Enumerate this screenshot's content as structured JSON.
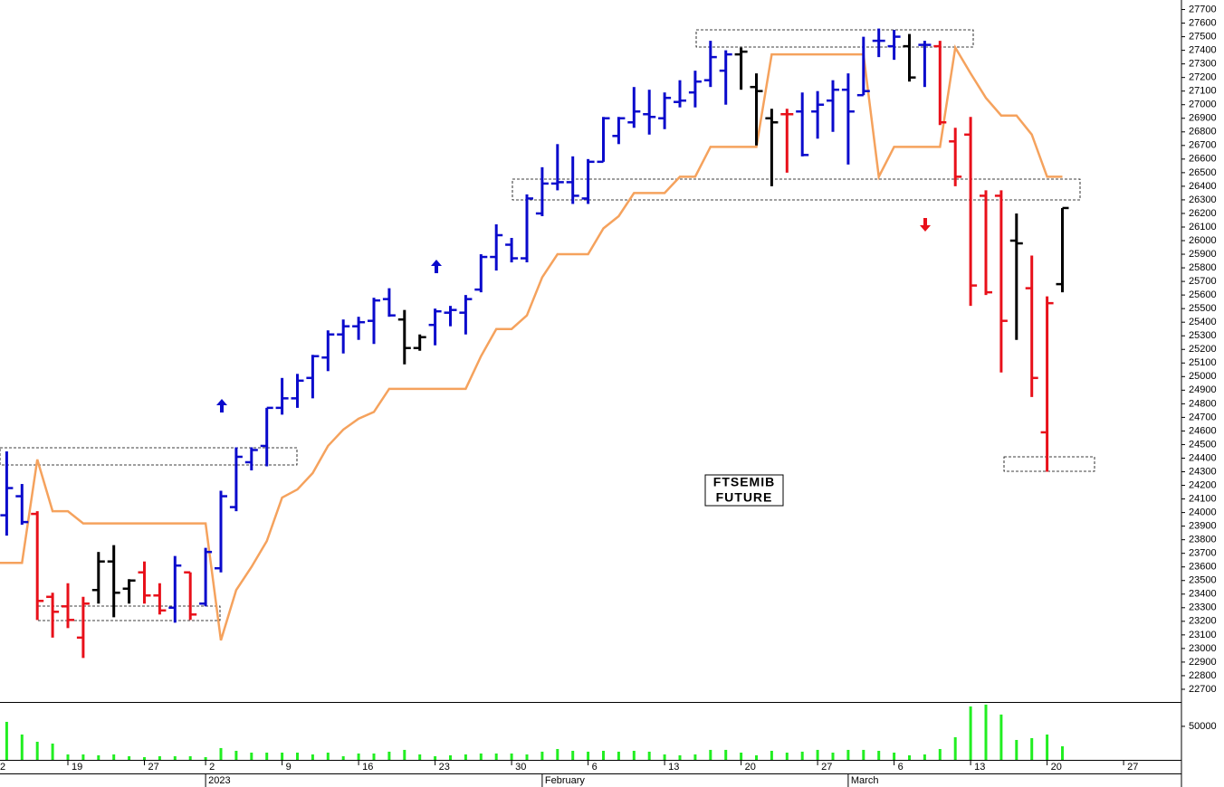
{
  "chart_data": {
    "type": "ohlc",
    "annotation": [
      "FTSEMIB",
      "FUTURE"
    ],
    "categories": [
      "2",
      null,
      null,
      null,
      null,
      "19",
      null,
      null,
      null,
      null,
      "27",
      null,
      null,
      null,
      "2",
      null,
      null,
      null,
      null,
      "9",
      null,
      null,
      null,
      null,
      "16",
      null,
      null,
      null,
      null,
      "23",
      null,
      null,
      null,
      null,
      "30",
      null,
      null,
      null,
      null,
      "6",
      null,
      null,
      null,
      null,
      "13",
      null,
      null,
      null,
      null,
      "20",
      null,
      null,
      null,
      null,
      "27",
      null,
      null,
      null,
      null,
      "6",
      null,
      null,
      null,
      null,
      "13",
      null,
      null,
      null,
      null,
      "20",
      null,
      null,
      null,
      null,
      "27",
      null,
      null,
      null
    ],
    "months": [
      "2023",
      "February",
      "March"
    ],
    "open": [
      null,
      23980,
      24120,
      23990,
      23380,
      23310,
      23080,
      23430,
      23640,
      23440,
      23560,
      23390,
      23300,
      23560,
      23330,
      23590,
      24040,
      24370,
      24490,
      24770,
      24840,
      24990,
      25140,
      25310,
      25370,
      25410,
      25570,
      25420,
      25210,
      25380,
      25470,
      25470,
      25640,
      25880,
      25970,
      25870,
      26200,
      26420,
      26430,
      26310,
      26580,
      26770,
      26870,
      26930,
      26900,
      27020,
      27090,
      27180,
      27250,
      27370,
      27130,
      26900,
      26930,
      26950,
      26950,
      27030,
      27110,
      27070,
      27470,
      27430,
      27430,
      27440,
      27430,
      26730,
      26780,
      26330,
      26330,
      26000,
      25650,
      24590,
      25680,
      null,
      null,
      null,
      null,
      null,
      null,
      null
    ],
    "high": [
      null,
      24450,
      24210,
      24010,
      23410,
      23480,
      23380,
      23710,
      23760,
      23510,
      23640,
      23480,
      23680,
      23560,
      23740,
      24160,
      24480,
      24480,
      24770,
      24990,
      25020,
      25160,
      25340,
      25420,
      25440,
      25580,
      25650,
      25490,
      25310,
      25500,
      25520,
      25600,
      25900,
      26120,
      26020,
      26340,
      26540,
      26710,
      26620,
      26600,
      26910,
      26910,
      27130,
      27110,
      27090,
      27180,
      27250,
      27470,
      27400,
      27420,
      27230,
      26970,
      26970,
      27090,
      27100,
      27180,
      27230,
      27500,
      27560,
      27550,
      27520,
      27470,
      27470,
      26830,
      26910,
      26370,
      26370,
      26200,
      25890,
      25590,
      26240,
      null,
      null,
      null,
      null,
      null,
      null,
      null
    ],
    "low": [
      null,
      23830,
      23910,
      23210,
      23080,
      23150,
      22930,
      23330,
      23230,
      23330,
      23330,
      23250,
      23190,
      23210,
      23310,
      23560,
      24010,
      24310,
      24340,
      24720,
      24770,
      24840,
      25040,
      25170,
      25270,
      25240,
      25440,
      25090,
      25190,
      25230,
      25370,
      25310,
      25620,
      25780,
      25840,
      25840,
      26180,
      26370,
      26270,
      26270,
      26580,
      26710,
      26830,
      26780,
      26820,
      26980,
      26980,
      27130,
      27000,
      27110,
      26700,
      26400,
      26500,
      26620,
      26750,
      26800,
      26560,
      27070,
      27350,
      27330,
      27170,
      27130,
      26850,
      26400,
      25520,
      25600,
      25030,
      25270,
      24850,
      24300,
      25620,
      null,
      null,
      null,
      null,
      null,
      null,
      null
    ],
    "close": [
      null,
      24180,
      23930,
      23350,
      23270,
      23210,
      23330,
      23640,
      23410,
      23500,
      23390,
      23280,
      23610,
      23250,
      23710,
      24120,
      24410,
      24460,
      24770,
      24840,
      24970,
      25150,
      25310,
      25370,
      25400,
      25560,
      25450,
      25210,
      25290,
      25480,
      25490,
      25570,
      25880,
      26040,
      25870,
      26310,
      26420,
      26430,
      26330,
      26580,
      26900,
      26900,
      26950,
      26910,
      27050,
      27030,
      27170,
      27350,
      27370,
      27390,
      27100,
      26870,
      26930,
      26630,
      27000,
      27110,
      26950,
      27100,
      27470,
      27500,
      27200,
      27440,
      26870,
      26470,
      25670,
      25620,
      25410,
      25980,
      24990,
      25540,
      26240,
      null,
      null,
      null,
      null,
      null,
      null,
      null
    ],
    "bar_colors": [
      null,
      "#0a0acc",
      "#0a0acc",
      "#e8101a",
      "#e8101a",
      "#e8101a",
      "#e8101a",
      "#000000",
      "#000000",
      "#000000",
      "#e8101a",
      "#e8101a",
      "#0a0acc",
      "#e8101a",
      "#0a0acc",
      "#0a0acc",
      "#0a0acc",
      "#0a0acc",
      "#0a0acc",
      "#0a0acc",
      "#0a0acc",
      "#0a0acc",
      "#0a0acc",
      "#0a0acc",
      "#0a0acc",
      "#0a0acc",
      "#0a0acc",
      "#000000",
      "#000000",
      "#0a0acc",
      "#0a0acc",
      "#0a0acc",
      "#0a0acc",
      "#0a0acc",
      "#0a0acc",
      "#0a0acc",
      "#0a0acc",
      "#0a0acc",
      "#0a0acc",
      "#0a0acc",
      "#0a0acc",
      "#0a0acc",
      "#0a0acc",
      "#0a0acc",
      "#0a0acc",
      "#0a0acc",
      "#0a0acc",
      "#0a0acc",
      "#0a0acc",
      "#000000",
      "#000000",
      "#000000",
      "#e8101a",
      "#0a0acc",
      "#0a0acc",
      "#0a0acc",
      "#0a0acc",
      "#0a0acc",
      "#0a0acc",
      "#0a0acc",
      "#000000",
      "#0a0acc",
      "#e8101a",
      "#e8101a",
      "#e8101a",
      "#e8101a",
      "#e8101a",
      "#000000",
      "#e8101a",
      "#e8101a",
      "#000000",
      null,
      null,
      null,
      null,
      null,
      null,
      null
    ],
    "line": {
      "color": "#f5a25d",
      "values": [
        23630,
        23630,
        23630,
        24390,
        24010,
        24010,
        23920,
        23920,
        23920,
        23920,
        23920,
        23920,
        23920,
        23920,
        23920,
        23060,
        23430,
        23600,
        23790,
        24110,
        24170,
        24290,
        24490,
        24610,
        24690,
        24740,
        24910,
        24910,
        24910,
        24910,
        24910,
        24910,
        25150,
        25350,
        25350,
        25450,
        25730,
        25900,
        25900,
        25900,
        26090,
        26180,
        26350,
        26350,
        26350,
        26470,
        26470,
        26690,
        26690,
        26690,
        26690,
        27370,
        27370,
        27370,
        27370,
        27370,
        27370,
        27370,
        26470,
        26690,
        26690,
        26690,
        26690,
        27420,
        27230,
        27050,
        26920,
        26920,
        26780,
        26470,
        26470,
        null,
        null,
        null,
        null,
        null,
        null,
        null
      ]
    },
    "ylim": [
      22600,
      27770
    ],
    "yticks": [
      22700,
      22800,
      22900,
      23000,
      23100,
      23200,
      23300,
      23400,
      23500,
      23600,
      23700,
      23800,
      23900,
      24000,
      24100,
      24200,
      24300,
      24400,
      24500,
      24600,
      24700,
      24800,
      24900,
      25000,
      25100,
      25200,
      25300,
      25400,
      25500,
      25600,
      25700,
      25800,
      25900,
      26000,
      26100,
      26200,
      26300,
      26400,
      26500,
      26600,
      26700,
      26800,
      26900,
      27000,
      27100,
      27200,
      27300,
      27400,
      27500,
      27600,
      27700
    ],
    "volume": {
      "color": "#22ee22",
      "ylim": [
        0,
        85000
      ],
      "yticks": [
        50000
      ],
      "values": [
        null,
        56700,
        37800,
        27000,
        24300,
        8100,
        8100,
        6800,
        8100,
        5400,
        4100,
        5400,
        5400,
        5400,
        4100,
        17600,
        13500,
        10800,
        10800,
        10800,
        10800,
        8100,
        10800,
        5400,
        9500,
        9500,
        12200,
        14900,
        8100,
        5400,
        6800,
        8100,
        9500,
        9500,
        9500,
        8100,
        12200,
        16200,
        13500,
        12200,
        13500,
        12200,
        13500,
        12200,
        8100,
        6800,
        8100,
        14900,
        14900,
        10800,
        6800,
        13500,
        10800,
        12200,
        14900,
        10800,
        14900,
        14900,
        13500,
        10800,
        6800,
        8100,
        16200,
        33800,
        79700,
        82400,
        67600,
        29700,
        32400,
        37800,
        20300,
        null,
        null,
        null,
        null,
        null,
        null,
        null
      ]
    }
  }
}
